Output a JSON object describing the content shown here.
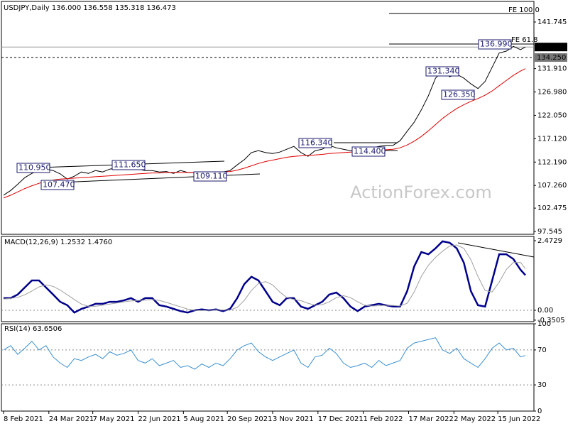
{
  "chart_data": [
    {
      "type": "line",
      "title": "USDJPY,Daily  136.000 136.558 135.318 136.473",
      "x": [
        0,
        5,
        10,
        15,
        20,
        25,
        30,
        35,
        40,
        45,
        50,
        55,
        60,
        65,
        70,
        75,
        80,
        85,
        90,
        95,
        100,
        105,
        110,
        115,
        120,
        125,
        130,
        135,
        140,
        145,
        150,
        155,
        160,
        165,
        170,
        175,
        180,
        185,
        190,
        195,
        200,
        205,
        210,
        215,
        220,
        225,
        230,
        235,
        240,
        245,
        250,
        255,
        260,
        265,
        270,
        275,
        280,
        285,
        290,
        295,
        300,
        305,
        310,
        315,
        320,
        325,
        330,
        335,
        340,
        345,
        350,
        355,
        360,
        365,
        368.5
      ],
      "xlim": [
        -1.5,
        374.5
      ],
      "ylim": [
        96.95,
        146.09
      ],
      "yticks": [
        141.745,
        {
          "value": 131.91,
          "label": "131.910"
        },
        {
          "value": 126.98,
          "label": "126.980"
        },
        {
          "value": 122.05,
          "label": "122.050"
        },
        {
          "value": 117.12,
          "label": "117.120"
        },
        {
          "value": 112.19,
          "label": "112.190"
        },
        {
          "value": 107.26,
          "label": "107.260"
        },
        102.475,
        97.545
      ],
      "price_lines": [
        136.473,
        {
          "value": 134.25,
          "label": "134.250"
        }
      ],
      "series": [
        {
          "name": "USDJPY",
          "color": "#000000",
          "values": [
            105.2,
            106.2,
            107.5,
            108.9,
            109.8,
            110.4,
            110.7,
            110.4,
            109.7,
            108.6,
            109.2,
            110.1,
            109.8,
            110.4,
            110.1,
            110.7,
            111.0,
            111.0,
            111.3,
            110.7,
            110.4,
            110.4,
            110.1,
            110.2,
            109.8,
            110.4,
            110.0,
            110.0,
            109.8,
            109.8,
            110.0,
            110.1,
            110.4,
            111.6,
            112.7,
            114.2,
            114.6,
            114.2,
            114.0,
            114.3,
            114.9,
            115.5,
            114.2,
            113.4,
            114.6,
            114.9,
            115.7,
            115.2,
            114.9,
            114.6,
            114.9,
            114.9,
            115.2,
            115.5,
            115.7,
            115.7,
            116.7,
            118.7,
            120.6,
            123.2,
            126.2,
            129.9,
            131.4,
            130.2,
            130.7,
            129.9,
            128.7,
            127.7,
            129.2,
            132.2,
            135.2,
            135.6,
            136.6,
            135.9,
            136.473
          ]
        },
        {
          "name": "MA",
          "color": "#e00000",
          "values": [
            104.6,
            105.2,
            105.9,
            106.6,
            107.2,
            107.7,
            108.1,
            108.4,
            108.6,
            108.7,
            108.8,
            108.9,
            109.0,
            109.1,
            109.2,
            109.3,
            109.4,
            109.5,
            109.6,
            109.7,
            109.8,
            109.9,
            109.9,
            110.0,
            110.0,
            110.0,
            110.0,
            110.0,
            110.0,
            110.0,
            110.0,
            110.1,
            110.2,
            110.5,
            110.9,
            111.4,
            111.9,
            112.3,
            112.6,
            112.9,
            113.2,
            113.4,
            113.5,
            113.6,
            113.7,
            113.8,
            114.0,
            114.1,
            114.2,
            114.3,
            114.4,
            114.5,
            114.6,
            114.7,
            114.8,
            114.9,
            115.2,
            115.8,
            116.6,
            117.6,
            118.8,
            120.1,
            121.4,
            122.5,
            123.5,
            124.3,
            125.0,
            125.6,
            126.3,
            127.2,
            128.3,
            129.4,
            130.5,
            131.4,
            131.9
          ]
        }
      ],
      "annotations": [
        "110.950",
        "107.470",
        "111.650",
        "109.110",
        "116.340",
        "114.400",
        "131.340",
        "126.350",
        "136.990"
      ],
      "fib_labels": [
        "FE 100.0",
        "FE 61.8"
      ],
      "watermark": "ActionForex.com"
    },
    {
      "type": "line",
      "title": "MACD(12,26,9) 1.2532 1.4760",
      "x": [
        0,
        5,
        10,
        15,
        20,
        25,
        30,
        35,
        40,
        45,
        50,
        55,
        60,
        65,
        70,
        75,
        80,
        85,
        90,
        95,
        100,
        105,
        110,
        115,
        120,
        125,
        130,
        135,
        140,
        145,
        150,
        155,
        160,
        165,
        170,
        175,
        180,
        185,
        190,
        195,
        200,
        205,
        210,
        215,
        220,
        225,
        230,
        235,
        240,
        245,
        250,
        255,
        260,
        265,
        270,
        275,
        280,
        285,
        290,
        295,
        300,
        305,
        310,
        315,
        320,
        325,
        330,
        335,
        340,
        345,
        350,
        355,
        360,
        365,
        368.5
      ],
      "xlim": [
        -1.5,
        374.5
      ],
      "ylim": [
        -0.404,
        2.624
      ],
      "yticks": [
        2.4729,
        {
          "value": 0,
          "label": "0.00"
        },
        -0.3505
      ],
      "levels": [
        0
      ],
      "series": [
        {
          "name": "MACD",
          "color": "#00008b",
          "values": [
            0.43,
            0.43,
            0.56,
            0.81,
            1.06,
            1.06,
            0.81,
            0.56,
            0.3,
            0.18,
            -0.08,
            0.05,
            0.13,
            0.23,
            0.23,
            0.3,
            0.3,
            0.35,
            0.43,
            0.3,
            0.43,
            0.43,
            0.18,
            0.13,
            0.05,
            -0.03,
            -0.08,
            0.0,
            0.03,
            0.0,
            0.03,
            -0.03,
            0.05,
            0.43,
            0.93,
            1.19,
            1.06,
            0.68,
            0.3,
            0.18,
            0.43,
            0.43,
            0.13,
            0.05,
            0.18,
            0.3,
            0.56,
            0.63,
            0.43,
            0.13,
            -0.03,
            0.13,
            0.18,
            0.23,
            0.18,
            0.13,
            0.13,
            0.68,
            1.56,
            2.07,
            1.99,
            2.2,
            2.45,
            2.4,
            2.2,
            1.69,
            0.68,
            0.18,
            0.13,
            1.06,
            1.99,
            1.99,
            1.82,
            1.44,
            1.25
          ]
        },
        {
          "name": "Signal",
          "color": "#a0a0a0",
          "values": [
            0.4,
            0.42,
            0.46,
            0.55,
            0.68,
            0.83,
            0.9,
            0.85,
            0.72,
            0.55,
            0.38,
            0.22,
            0.14,
            0.14,
            0.18,
            0.22,
            0.26,
            0.3,
            0.33,
            0.35,
            0.36,
            0.38,
            0.35,
            0.28,
            0.2,
            0.12,
            0.04,
            0.0,
            -0.01,
            0.0,
            0.01,
            0.01,
            0.01,
            0.1,
            0.35,
            0.7,
            0.95,
            1.02,
            0.9,
            0.65,
            0.45,
            0.38,
            0.34,
            0.25,
            0.18,
            0.2,
            0.3,
            0.45,
            0.52,
            0.45,
            0.3,
            0.18,
            0.15,
            0.16,
            0.18,
            0.17,
            0.15,
            0.25,
            0.65,
            1.2,
            1.6,
            1.88,
            2.1,
            2.28,
            2.32,
            2.2,
            1.8,
            1.2,
            0.7,
            0.65,
            1.0,
            1.45,
            1.7,
            1.7,
            1.48
          ]
        }
      ]
    },
    {
      "type": "line",
      "title": "RSI(14) 63.6506",
      "x": [
        0,
        5,
        10,
        15,
        20,
        25,
        30,
        35,
        40,
        45,
        50,
        55,
        60,
        65,
        70,
        75,
        80,
        85,
        90,
        95,
        100,
        105,
        110,
        115,
        120,
        125,
        130,
        135,
        140,
        145,
        150,
        155,
        160,
        165,
        170,
        175,
        180,
        185,
        190,
        195,
        200,
        205,
        210,
        215,
        220,
        225,
        230,
        235,
        240,
        245,
        250,
        255,
        260,
        265,
        270,
        275,
        280,
        285,
        290,
        295,
        300,
        305,
        310,
        315,
        320,
        325,
        330,
        335,
        340,
        345,
        350,
        355,
        360,
        365,
        368.5
      ],
      "xlim": [
        -1.5,
        374.5
      ],
      "ylim": [
        0,
        100
      ],
      "yticks": [
        100,
        70,
        30,
        0
      ],
      "levels": [
        70,
        30
      ],
      "xticks": [
        {
          "value": 0,
          "label": "8 Feb 2021"
        },
        {
          "value": 32,
          "label": "24 Mar 2021"
        },
        {
          "value": 63,
          "label": "7 May 2021"
        },
        {
          "value": 95,
          "label": "22 Jun 2021"
        },
        {
          "value": 127,
          "label": "5 Aug 2021"
        },
        {
          "value": 158,
          "label": "20 Sep 2021"
        },
        {
          "value": 190,
          "label": "3 Nov 2021"
        },
        {
          "value": 222,
          "label": "17 Dec 2021"
        },
        {
          "value": 254,
          "label": "1 Feb 2022"
        },
        {
          "value": 286,
          "label": "17 Mar 2022"
        },
        {
          "value": 318,
          "label": "2 May 2022"
        },
        {
          "value": 349,
          "label": "15 Jun 2022"
        }
      ],
      "series": [
        {
          "name": "RSI",
          "color": "#3a8fd0",
          "values": [
            70,
            75,
            65,
            72,
            80,
            70,
            75,
            62,
            55,
            50,
            60,
            58,
            62,
            65,
            60,
            68,
            64,
            66,
            70,
            58,
            55,
            60,
            52,
            55,
            58,
            50,
            52,
            48,
            54,
            50,
            55,
            52,
            60,
            70,
            75,
            78,
            68,
            62,
            58,
            62,
            66,
            70,
            55,
            50,
            62,
            64,
            72,
            66,
            55,
            50,
            52,
            55,
            50,
            58,
            52,
            55,
            58,
            72,
            78,
            80,
            82,
            84,
            70,
            66,
            72,
            60,
            55,
            50,
            60,
            72,
            78,
            70,
            72,
            62,
            63.65
          ]
        }
      ]
    }
  ]
}
